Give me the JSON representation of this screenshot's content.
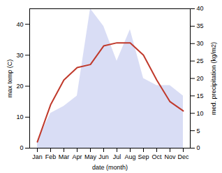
{
  "chart_data": {
    "type": "line",
    "categories": [
      "Jan",
      "Feb",
      "Mar",
      "Apr",
      "May",
      "Jun",
      "Jul",
      "Aug",
      "Sep",
      "Oct",
      "Nov",
      "Dec"
    ],
    "xlabel": "date (month)",
    "ylabel": "max temp (C)",
    "y2label": "med. precipitation (kg/m2)",
    "series": [
      {
        "type": "area",
        "axis": "y2",
        "color": "#aab4e8",
        "values": [
          2,
          10,
          12,
          15,
          40,
          35,
          25,
          34,
          20,
          18,
          18,
          15
        ]
      },
      {
        "type": "line",
        "color": "#c0392b",
        "values": [
          2,
          14,
          22,
          26,
          27,
          33,
          34,
          34,
          30,
          22,
          15,
          12
        ]
      }
    ],
    "ylim": [
      0,
      45
    ],
    "yticks": [
      0,
      10,
      20,
      30,
      40
    ],
    "y2lim": [
      0,
      40
    ],
    "y2ticks": [
      0,
      5,
      10,
      15,
      20,
      25,
      30,
      35,
      40
    ]
  }
}
